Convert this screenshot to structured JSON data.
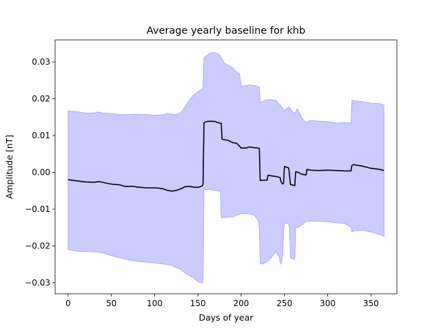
{
  "chart_data": {
    "type": "area",
    "title": "Average yearly baseline for khb",
    "xlabel": "Days of year",
    "ylabel": "Amplitude [nT]",
    "xlim": [
      -15,
      380
    ],
    "ylim": [
      -0.033,
      0.036
    ],
    "xticks": [
      0,
      50,
      100,
      150,
      200,
      250,
      300,
      350
    ],
    "yticks": [
      -0.03,
      -0.02,
      -0.01,
      0.0,
      0.01,
      0.02,
      0.03
    ],
    "ytick_labels": [
      "−0.03",
      "−0.02",
      "−0.01",
      "0.00",
      "0.01",
      "0.02",
      "0.03"
    ],
    "grid": false,
    "band_color": "#ccccff",
    "band_edge_color": "#aaaaff",
    "line_color": "#000000",
    "series": [
      {
        "x": [
          0,
          10,
          20,
          30,
          35,
          40,
          50,
          60,
          65,
          75,
          80,
          90,
          100,
          105,
          110,
          115,
          120,
          125,
          130,
          135,
          140,
          145,
          150,
          155,
          156,
          157,
          160,
          165,
          170,
          175,
          177,
          178,
          185,
          190,
          195,
          200,
          205,
          210,
          215,
          220,
          221,
          222,
          230,
          231,
          240,
          245,
          246,
          248,
          249,
          250,
          255,
          256,
          257,
          260,
          262,
          263,
          265,
          270,
          275,
          276,
          280,
          290,
          300,
          310,
          320,
          327,
          328,
          330,
          340,
          350,
          360,
          365
        ],
        "y": [
          -0.002,
          -0.0023,
          -0.0026,
          -0.0027,
          -0.0025,
          -0.0027,
          -0.0032,
          -0.0034,
          -0.0038,
          -0.0038,
          -0.004,
          -0.0042,
          -0.0042,
          -0.0043,
          -0.0045,
          -0.0049,
          -0.0051,
          -0.0049,
          -0.0045,
          -0.0039,
          -0.0038,
          -0.004,
          -0.0041,
          -0.0037,
          -0.0032,
          0.0135,
          0.0138,
          0.0139,
          0.0138,
          0.0134,
          0.0133,
          0.009,
          0.0087,
          0.0081,
          0.0079,
          0.0066,
          0.0066,
          0.0069,
          0.0067,
          0.0066,
          0.0065,
          -0.0022,
          -0.0021,
          -0.0008,
          -0.0011,
          -0.0014,
          -0.0025,
          -0.0032,
          -0.0029,
          0.0016,
          0.0012,
          -0.0009,
          -0.0033,
          -0.0035,
          -0.0036,
          0.0002,
          0.0001,
          -0.0005,
          -0.0007,
          0.0008,
          0.0006,
          0.0005,
          0.0006,
          0.0005,
          0.0004,
          0.0004,
          0.0019,
          0.0021,
          0.0017,
          0.0011,
          0.0008,
          0.0005
        ]
      },
      {
        "x": [
          0,
          10,
          20,
          30,
          35,
          40,
          50,
          60,
          70,
          80,
          90,
          100,
          110,
          115,
          120,
          125,
          130,
          135,
          140,
          145,
          150,
          155,
          156,
          157,
          160,
          165,
          170,
          175,
          180,
          190,
          195,
          198,
          200,
          205,
          210,
          215,
          220,
          221,
          222,
          230,
          235,
          240,
          245,
          250,
          255,
          260,
          262,
          265,
          270,
          275,
          280,
          290,
          300,
          310,
          320,
          327,
          328,
          330,
          340,
          350,
          360,
          365
        ],
        "y": [
          0.0167,
          0.0165,
          0.0161,
          0.0161,
          0.0164,
          0.0161,
          0.016,
          0.0157,
          0.0157,
          0.0158,
          0.0157,
          0.0155,
          0.0157,
          0.016,
          0.0158,
          0.0157,
          0.0162,
          0.0177,
          0.0195,
          0.021,
          0.022,
          0.0226,
          0.023,
          0.0312,
          0.0318,
          0.0325,
          0.0325,
          0.032,
          0.0298,
          0.0285,
          0.0272,
          0.0268,
          0.0235,
          0.0235,
          0.0238,
          0.0236,
          0.0233,
          0.0232,
          0.0189,
          0.0198,
          0.0197,
          0.0196,
          0.0183,
          0.0167,
          0.0178,
          0.0163,
          0.016,
          0.0173,
          0.0148,
          0.0135,
          0.0141,
          0.0139,
          0.0138,
          0.0134,
          0.0135,
          0.0134,
          0.0196,
          0.0195,
          0.0192,
          0.0188,
          0.0187,
          0.0183
        ]
      },
      {
        "x": [
          0,
          10,
          20,
          30,
          40,
          50,
          60,
          70,
          80,
          90,
          100,
          110,
          120,
          125,
          130,
          135,
          140,
          145,
          150,
          155,
          156,
          157,
          160,
          165,
          170,
          175,
          176,
          177,
          178,
          185,
          190,
          195,
          200,
          205,
          210,
          215,
          220,
          221,
          222,
          225,
          230,
          235,
          240,
          244,
          245,
          246,
          248,
          249,
          250,
          255,
          256,
          257,
          260,
          262,
          263,
          265,
          270,
          275,
          280,
          290,
          300,
          310,
          320,
          327,
          328,
          330,
          340,
          350,
          360,
          365
        ],
        "y": [
          -0.0209,
          -0.0214,
          -0.0215,
          -0.0216,
          -0.0219,
          -0.0226,
          -0.0232,
          -0.0238,
          -0.0242,
          -0.0244,
          -0.0246,
          -0.0249,
          -0.0253,
          -0.0259,
          -0.0263,
          -0.0273,
          -0.0281,
          -0.0286,
          -0.0297,
          -0.03,
          -0.0299,
          -0.0047,
          -0.0046,
          -0.0047,
          -0.0049,
          -0.005,
          -0.005,
          -0.012,
          -0.0124,
          -0.0121,
          -0.0122,
          -0.0116,
          -0.0112,
          -0.0112,
          -0.0113,
          -0.0116,
          -0.0132,
          -0.015,
          -0.0248,
          -0.0249,
          -0.0243,
          -0.0231,
          -0.0215,
          -0.023,
          -0.0245,
          -0.0249,
          -0.0226,
          -0.0158,
          -0.0136,
          -0.0141,
          -0.0151,
          -0.0233,
          -0.0235,
          -0.0236,
          -0.0149,
          -0.015,
          -0.0143,
          -0.0133,
          -0.0132,
          -0.0133,
          -0.0134,
          -0.0137,
          -0.0139,
          -0.0149,
          -0.0162,
          -0.0159,
          -0.0157,
          -0.0162,
          -0.0169,
          -0.0174
        ]
      }
    ]
  }
}
